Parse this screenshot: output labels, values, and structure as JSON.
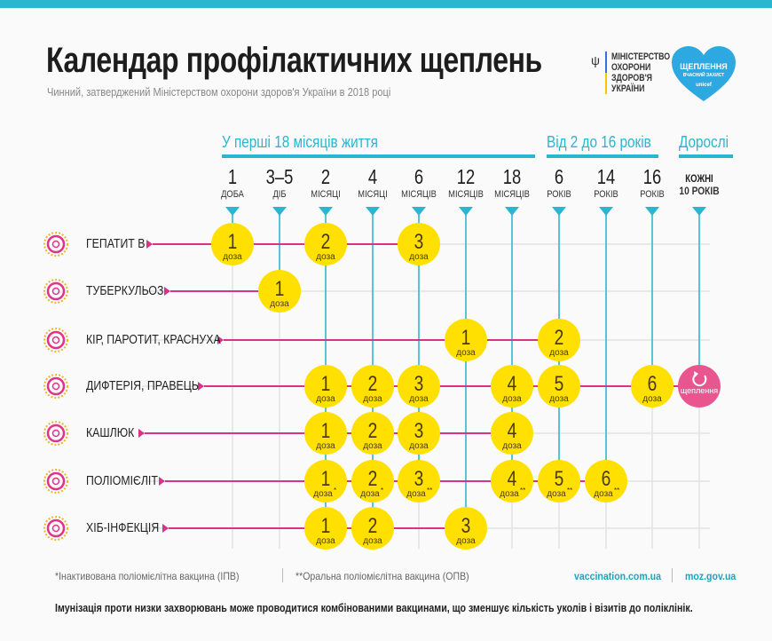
{
  "header": {
    "title": "Календар профілактичних щеплень",
    "subtitle": "Чинний, затверджений Міністерством охорони здоров'я України в 2018 році",
    "ministry_logo_lines": [
      "МІНІСТЕРСТВО",
      "ОХОРОНИ",
      "ЗДОРОВ'Я",
      "УКРАЇНИ"
    ],
    "campaign_logo": {
      "title": "ЩЕПЛЕННЯ",
      "tagline": "ВЧАСНИЙ ЗАХИСТ",
      "brand": "unicef"
    }
  },
  "colors": {
    "accent": "#29b6cf",
    "line": "#d6338a",
    "dose": "#ffe000",
    "dose_text": "#4a3a10",
    "booster": "#e9558f",
    "grid": "#e2e2e2"
  },
  "groups": [
    {
      "label": "У перші 18 місяців життя"
    },
    {
      "label": "Від 2 до 16 років"
    },
    {
      "label": "Дорослі"
    }
  ],
  "columns": [
    {
      "num": "1",
      "unit": "ДОБА"
    },
    {
      "num": "3–5",
      "unit": "ДІБ"
    },
    {
      "num": "2",
      "unit": "МІСЯЦІ"
    },
    {
      "num": "4",
      "unit": "МІСЯЦІ"
    },
    {
      "num": "6",
      "unit": "МІСЯЦІВ"
    },
    {
      "num": "12",
      "unit": "МІСЯЦІВ"
    },
    {
      "num": "18",
      "unit": "МІСЯЦІВ"
    },
    {
      "num": "6",
      "unit": "РОКІВ"
    },
    {
      "num": "14",
      "unit": "РОКІВ"
    },
    {
      "num": "16",
      "unit": "РОКІВ"
    },
    {
      "num": "КОЖНІ",
      "unit": "10 РОКІВ"
    }
  ],
  "dose_word": "доза",
  "booster_label": "щеплення",
  "booster_icon": "refresh-icon",
  "rows": [
    {
      "label": "ГЕПАТИТ В",
      "icon": "hepatitis-virus-icon",
      "doses": [
        {
          "col": 0,
          "n": "1"
        },
        {
          "col": 2,
          "n": "2"
        },
        {
          "col": 4,
          "n": "3"
        }
      ]
    },
    {
      "label": "ТУБЕРКУЛЬОЗ",
      "icon": "tuberculosis-bacteria-icon",
      "doses": [
        {
          "col": 1,
          "n": "1"
        }
      ]
    },
    {
      "label": "КІР, ПАРОТИТ, КРАСНУХА",
      "icon": "measles-virus-icon",
      "doses": [
        {
          "col": 5,
          "n": "1"
        },
        {
          "col": 7,
          "n": "2"
        }
      ]
    },
    {
      "label": "ДИФТЕРІЯ, ПРАВЕЦЬ",
      "icon": "diphtheria-bacteria-icon",
      "doses": [
        {
          "col": 2,
          "n": "1"
        },
        {
          "col": 3,
          "n": "2"
        },
        {
          "col": 4,
          "n": "3"
        },
        {
          "col": 6,
          "n": "4"
        },
        {
          "col": 7,
          "n": "5"
        },
        {
          "col": 9,
          "n": "6"
        },
        {
          "col": 10,
          "booster": true
        }
      ]
    },
    {
      "label": "КАШЛЮК",
      "icon": "pertussis-bacteria-icon",
      "doses": [
        {
          "col": 2,
          "n": "1"
        },
        {
          "col": 3,
          "n": "2"
        },
        {
          "col": 4,
          "n": "3"
        },
        {
          "col": 6,
          "n": "4"
        }
      ]
    },
    {
      "label": "ПОЛІОМІЄЛІТ",
      "icon": "polio-virus-icon",
      "doses": [
        {
          "col": 2,
          "n": "1",
          "mark": "*"
        },
        {
          "col": 3,
          "n": "2",
          "mark": "*"
        },
        {
          "col": 4,
          "n": "3",
          "mark": "**"
        },
        {
          "col": 6,
          "n": "4",
          "mark": "**"
        },
        {
          "col": 7,
          "n": "5",
          "mark": "**"
        },
        {
          "col": 8,
          "n": "6",
          "mark": "**"
        }
      ]
    },
    {
      "label": "ХІБ-ІНФЕКЦІЯ",
      "icon": "hib-bacteria-icon",
      "doses": [
        {
          "col": 2,
          "n": "1"
        },
        {
          "col": 3,
          "n": "2"
        },
        {
          "col": 5,
          "n": "3"
        }
      ]
    }
  ],
  "footer": {
    "note_ipv": "*Інактивована поліомієлітна вакцина (ІПВ)",
    "note_opv": "**Оральна поліомієлітна вакцина (ОПВ)",
    "link1": "vaccination.com.ua",
    "link2": "moz.gov.ua",
    "statement": "Імунізація проти низки захворювань може проводитися комбінованими вакцинами, що зменшує кількість уколів і візитів до поліклінік."
  }
}
